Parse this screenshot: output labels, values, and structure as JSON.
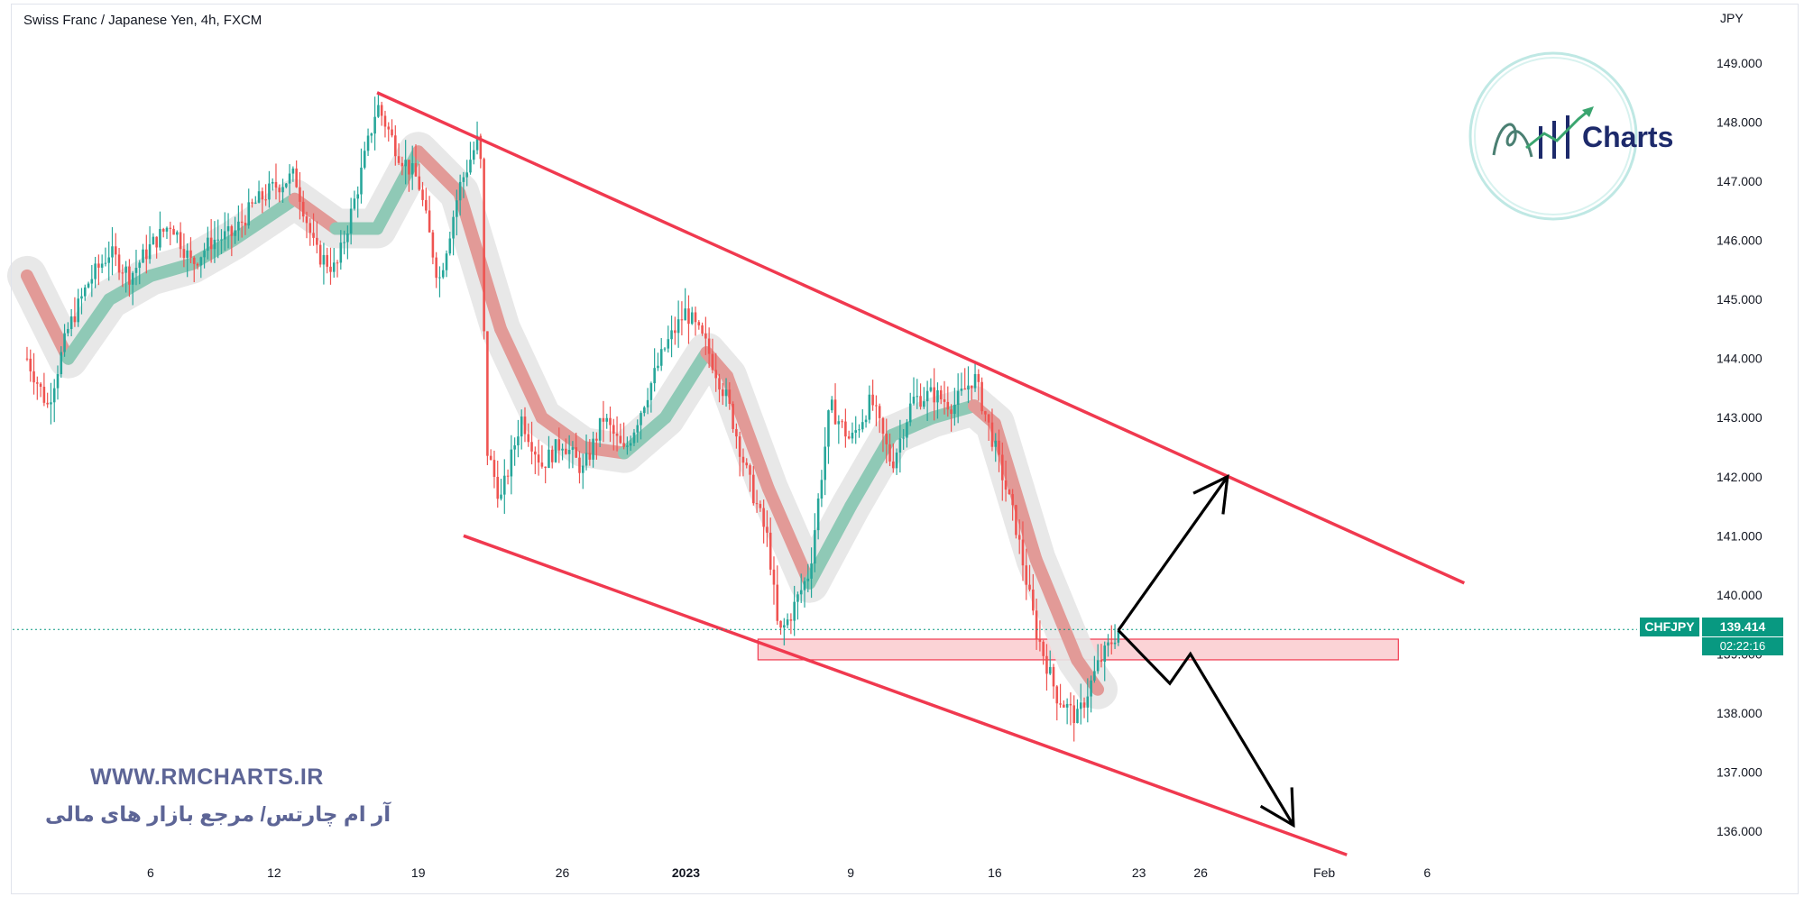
{
  "header": {
    "symbol_title": "Swiss Franc / Japanese Yen, 4h, FXCM",
    "currency": "JPY"
  },
  "watermark": {
    "url": "WWW.RMCHARTS.IR",
    "persian_text": "آر ام چارتس/ مرجع بازار های مالی",
    "logo_word": "Charts"
  },
  "price_tag": {
    "symbol": "CHFJPY",
    "price": "139.414",
    "countdown": "02:22:16"
  },
  "colors": {
    "bull": "#26a69a",
    "bear": "#ef5350",
    "channel": "#f0394f",
    "zone_fill": "#fbd3d6",
    "arrow": "#000000",
    "price_line": "#089981"
  },
  "chart_data": {
    "type": "candlestick",
    "title": "Swiss Franc / Japanese Yen, 4h, FXCM",
    "y_axis": {
      "unit": "JPY",
      "range": [
        135.5,
        149.8
      ],
      "ticks": [
        "149.000",
        "148.000",
        "147.000",
        "146.000",
        "145.000",
        "144.000",
        "143.000",
        "142.000",
        "141.000",
        "140.000",
        "139.000",
        "138.000",
        "137.000",
        "136.000"
      ],
      "tick_values": [
        149,
        148,
        147,
        146,
        145,
        144,
        143,
        142,
        141,
        140,
        139,
        138,
        137,
        136
      ]
    },
    "x_axis": {
      "ticks": [
        "6",
        "12",
        "19",
        "26",
        "2023",
        "9",
        "16",
        "23",
        "26",
        "Feb",
        "6"
      ],
      "tick_days": [
        6,
        12,
        19,
        26,
        32,
        40,
        47,
        54,
        57,
        63,
        68
      ],
      "day_range": [
        -0.7,
        81.7
      ]
    },
    "last_price": 139.414,
    "close_path": [
      [
        0,
        144.0
      ],
      [
        1,
        143.2
      ],
      [
        2,
        144.5
      ],
      [
        3,
        145.3
      ],
      [
        4,
        145.8
      ],
      [
        5,
        145.4
      ],
      [
        6,
        145.9
      ],
      [
        7,
        146.3
      ],
      [
        8,
        145.6
      ],
      [
        9,
        146.0
      ],
      [
        10,
        146.1
      ],
      [
        11,
        146.6
      ],
      [
        12,
        146.9
      ],
      [
        13,
        147.1
      ],
      [
        14,
        145.8
      ],
      [
        15,
        145.5
      ],
      [
        16,
        146.8
      ],
      [
        17,
        148.3
      ],
      [
        18,
        147.5
      ],
      [
        19,
        147.0
      ],
      [
        20,
        145.3
      ],
      [
        21,
        146.9
      ],
      [
        22,
        147.8
      ],
      [
        22.3,
        142.5
      ],
      [
        23,
        141.6
      ],
      [
        24,
        143.0
      ],
      [
        25,
        142.2
      ],
      [
        26,
        142.6
      ],
      [
        27,
        142.1
      ],
      [
        28,
        143.0
      ],
      [
        29,
        142.4
      ],
      [
        30,
        143.3
      ],
      [
        31,
        144.2
      ],
      [
        32,
        144.8
      ],
      [
        33,
        144.2
      ],
      [
        34,
        143.3
      ],
      [
        35,
        142.0
      ],
      [
        36,
        140.9
      ],
      [
        36.5,
        139.3
      ],
      [
        37,
        139.6
      ],
      [
        38,
        140.4
      ],
      [
        39,
        143.2
      ],
      [
        40,
        142.6
      ],
      [
        41,
        143.3
      ],
      [
        42,
        142.2
      ],
      [
        43,
        143.3
      ],
      [
        44,
        143.4
      ],
      [
        45,
        143.2
      ],
      [
        46,
        143.7
      ],
      [
        47,
        142.5
      ],
      [
        48,
        141.2
      ],
      [
        49,
        139.4
      ],
      [
        50,
        138.3
      ],
      [
        51,
        137.9
      ],
      [
        52,
        138.8
      ],
      [
        53,
        139.414
      ]
    ],
    "moving_average_ribbon": [
      [
        0,
        145.4
      ],
      [
        2,
        144.0
      ],
      [
        4,
        145.0
      ],
      [
        6,
        145.4
      ],
      [
        8,
        145.6
      ],
      [
        10,
        146.0
      ],
      [
        13,
        146.7
      ],
      [
        15,
        146.2
      ],
      [
        17,
        146.2
      ],
      [
        19,
        147.5
      ],
      [
        21,
        146.8
      ],
      [
        23,
        144.5
      ],
      [
        25,
        143.0
      ],
      [
        27,
        142.5
      ],
      [
        29,
        142.4
      ],
      [
        31,
        143.0
      ],
      [
        33,
        144.1
      ],
      [
        34,
        143.7
      ],
      [
        36,
        141.8
      ],
      [
        38,
        140.2
      ],
      [
        40,
        141.5
      ],
      [
        42,
        142.7
      ],
      [
        44,
        143.0
      ],
      [
        46,
        143.2
      ],
      [
        47,
        142.9
      ],
      [
        49,
        140.6
      ],
      [
        51,
        138.9
      ],
      [
        52,
        138.4
      ]
    ],
    "channel": {
      "upper": [
        [
          17,
          148.5
        ],
        [
          69.8,
          140.2
        ]
      ],
      "lower": [
        [
          21.2,
          141.0
        ],
        [
          64.1,
          135.6
        ]
      ]
    },
    "support_zone": {
      "from_day": 35.5,
      "to_day": 66.6,
      "low": 138.9,
      "high": 139.25
    },
    "projection_up": [
      [
        53,
        139.4
      ],
      [
        58.3,
        142.0
      ]
    ],
    "projection_down": [
      [
        53,
        139.4
      ],
      [
        55.5,
        138.5
      ],
      [
        56.5,
        139.0
      ],
      [
        61.5,
        136.1
      ]
    ]
  }
}
